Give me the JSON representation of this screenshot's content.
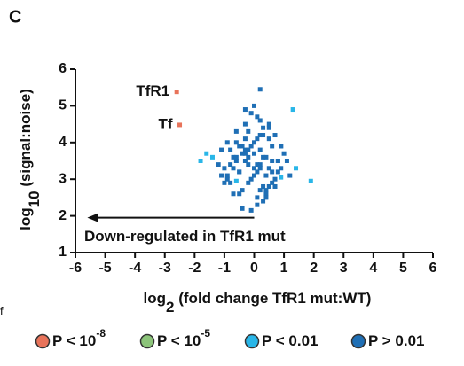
{
  "chart_data": {
    "type": "scatter",
    "panel_label": "C",
    "cropped_text": "f",
    "x_label": {
      "text": "log",
      "subscript": "2",
      "rest": " (fold change TfR1 mut:WT)"
    },
    "y_label": {
      "text": "log",
      "subscript": "10",
      "rest": " (signal:noise)"
    },
    "xlim": [
      -6,
      6
    ],
    "xticks": [
      -6,
      -5,
      -4,
      -3,
      -2,
      -1,
      0,
      1,
      2,
      3,
      4,
      5,
      6
    ],
    "ylim": [
      1,
      6
    ],
    "yticks": [
      1,
      2,
      3,
      4,
      5,
      6
    ],
    "annotations": [
      {
        "text": "TfR1",
        "x": -2.6,
        "y": 5.38
      },
      {
        "text": "Tf",
        "x": -2.5,
        "y": 4.48
      },
      {
        "text": "Down-regulated in TfR1 mut",
        "arrow_from": 0,
        "arrow_to": -5.6,
        "y": 2.0
      }
    ],
    "series": [
      {
        "name": "P < 10",
        "name_exponent": "-8",
        "color": "#e8735a",
        "x": [
          -2.6,
          -2.5
        ],
        "values": [
          5.38,
          4.48
        ]
      },
      {
        "name": "P < 10",
        "name_exponent": "-5",
        "color": "#8cc47a",
        "x": [],
        "values": []
      },
      {
        "name": "P < 0.01",
        "color": "#29b6e8",
        "x": [
          1.3,
          -1.6,
          -1.8,
          1.9,
          1.4,
          -0.6,
          0.9,
          -1.4
        ],
        "values": [
          4.9,
          3.7,
          3.5,
          2.95,
          3.3,
          2.95,
          3.05,
          3.6
        ]
      },
      {
        "name": "P > 0.01",
        "color": "#1f6fb5",
        "x": [
          -0.3,
          0.2,
          -0.5,
          0.1,
          0.4,
          -0.2,
          0.6,
          -0.8,
          0.3,
          -0.1,
          0.0,
          0.5,
          -0.6,
          0.8,
          -0.4,
          0.2,
          -0.9,
          0.7,
          0.1,
          -0.3,
          0.4,
          -0.7,
          0.9,
          -0.2,
          0.3,
          -1.0,
          0.6,
          0.0,
          -0.5,
          1.0,
          -0.1,
          0.2,
          -0.8,
          0.5,
          -0.4,
          0.1,
          -1.1,
          0.8,
          -0.3,
          0.4,
          -0.6,
          0.0,
          0.7,
          -0.2,
          1.1,
          -0.9,
          0.3,
          -0.5,
          0.2,
          -0.1,
          0.6,
          -0.7,
          0.1,
          -1.2,
          0.5,
          -0.4,
          0.9,
          -0.3,
          0.0,
          0.4,
          -0.6,
          0.2,
          -0.8,
          0.7,
          -0.2,
          0.3,
          -1.0,
          0.1,
          0.5,
          -0.5,
          -0.1,
          0.8,
          -0.3,
          0.2,
          -0.7,
          1.2,
          -0.4,
          0.0,
          0.6,
          -0.9,
          0.3,
          -0.2,
          0.4,
          -0.6,
          0.1,
          0.9,
          -1.1,
          0.5,
          -0.3,
          0.2
        ],
        "values": [
          3.5,
          3.8,
          3.2,
          4.1,
          3.6,
          2.9,
          3.9,
          3.4,
          4.4,
          3.0,
          3.7,
          3.3,
          4.0,
          3.5,
          2.7,
          4.6,
          3.1,
          4.2,
          2.5,
          3.8,
          3.1,
          3.6,
          3.9,
          4.3,
          2.8,
          3.3,
          3.5,
          5.0,
          2.6,
          3.7,
          4.8,
          3.4,
          2.9,
          4.5,
          3.9,
          2.3,
          3.8,
          3.2,
          4.1,
          2.7,
          4.3,
          3.3,
          3.0,
          3.6,
          3.5,
          4.0,
          2.4,
          3.2,
          5.45,
          3.9,
          2.9,
          2.6,
          4.7,
          3.4,
          4.1,
          2.2,
          3.3,
          3.7,
          3.1,
          2.6,
          3.5,
          4.2,
          3.8,
          2.8,
          3.4,
          3.6,
          2.9,
          3.2,
          4.4,
          3.9,
          2.15,
          3.5,
          4.5,
          2.7,
          3.3,
          3.1,
          3.7,
          4.0,
          3.2,
          3.0,
          4.2,
          3.8,
          2.5,
          3.6,
          3.4,
          3.9,
          3.1,
          2.8,
          4.9,
          3.3
        ]
      }
    ]
  }
}
